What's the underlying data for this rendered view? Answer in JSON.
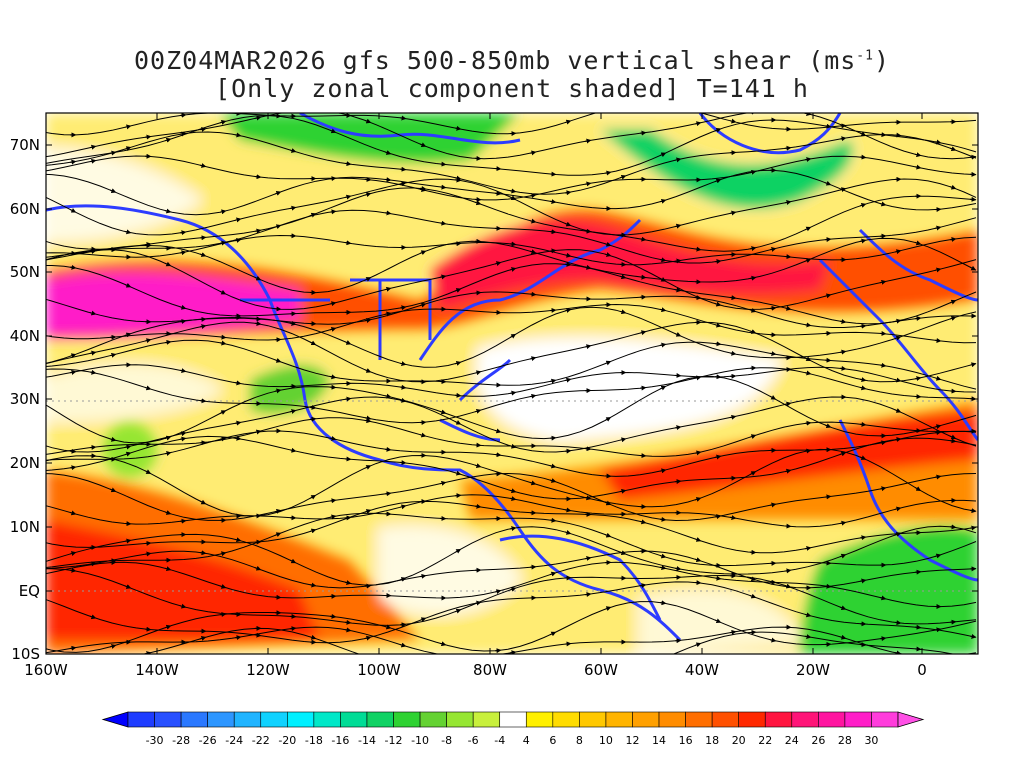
{
  "title_line1": "00Z04MAR2026 gfs 500-850mb vertical shear (ms",
  "title_unit_sup": "-1",
  "title_line1_end": ")",
  "title_line2": "[Only zonal component shaded] T=141 h",
  "lat_labels": [
    "70N",
    "60N",
    "50N",
    "40N",
    "30N",
    "20N",
    "10N",
    "EQ",
    "10S"
  ],
  "lon_labels": [
    "160W",
    "140W",
    "120W",
    "100W",
    "80W",
    "60W",
    "40W",
    "20W",
    "0"
  ],
  "colorbar": {
    "labels": [
      "-30",
      "-28",
      "-26",
      "-24",
      "-22",
      "-20",
      "-18",
      "-16",
      "-14",
      "-12",
      "-10",
      "-8",
      "-6",
      "-4",
      "4",
      "6",
      "8",
      "10",
      "12",
      "14",
      "16",
      "18",
      "20",
      "22",
      "24",
      "26",
      "28",
      "30"
    ],
    "colors": [
      "#1e3cff",
      "#2850ff",
      "#2a78ff",
      "#2d96ff",
      "#20b4ff",
      "#10d2ff",
      "#00f0ff",
      "#00e8c8",
      "#00dc96",
      "#10d264",
      "#2ed232",
      "#64d232",
      "#96e632",
      "#c8f03c",
      "#ffffff",
      "#fff000",
      "#ffdc00",
      "#ffc800",
      "#ffb400",
      "#ffa000",
      "#ff8c00",
      "#ff6e00",
      "#ff5000",
      "#ff2800",
      "#ff1440",
      "#ff1478",
      "#ff14a0",
      "#ff1ec8",
      "#ff3cdc"
    ],
    "end_left_color": "#0000ff",
    "end_right_color": "#ff50e6"
  },
  "land_color": "#2d3cff",
  "streamline_color": "#000000"
}
